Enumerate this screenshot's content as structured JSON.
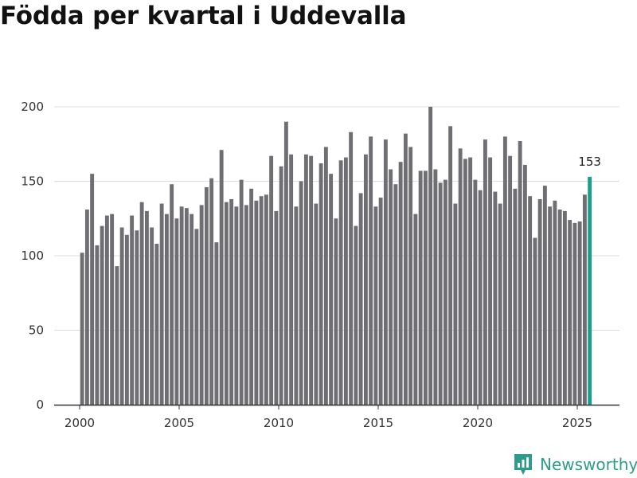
{
  "title": "Födda per kvartal i Uddevalla",
  "brand": {
    "name": "Newsworthy"
  },
  "colors": {
    "bar": "#6e6e73",
    "highlight": "#1a9e8f",
    "grid": "#dcdcdc",
    "axis": "#333333",
    "brand": "#2e9b8c"
  },
  "chart_data": {
    "type": "bar",
    "title": "Födda per kvartal i Uddevalla",
    "xlabel": "",
    "ylabel": "",
    "ylim": [
      0,
      200
    ],
    "yticks": [
      0,
      50,
      100,
      150,
      200
    ],
    "xticks": [
      "2000",
      "2005",
      "2010",
      "2015",
      "2020",
      "2025"
    ],
    "start_year": 2000,
    "periods_per_year": 4,
    "highlight_last": true,
    "last_value_label": "153",
    "values": [
      102,
      131,
      155,
      107,
      120,
      127,
      128,
      93,
      119,
      114,
      127,
      117,
      136,
      130,
      119,
      108,
      135,
      128,
      148,
      125,
      133,
      132,
      128,
      118,
      134,
      146,
      152,
      109,
      171,
      136,
      138,
      133,
      151,
      134,
      145,
      137,
      140,
      141,
      167,
      130,
      160,
      190,
      168,
      133,
      150,
      168,
      167,
      135,
      162,
      173,
      155,
      125,
      164,
      166,
      183,
      120,
      142,
      168,
      180,
      133,
      139,
      178,
      158,
      148,
      163,
      182,
      173,
      128,
      157,
      157,
      200,
      158,
      149,
      151,
      187,
      135,
      172,
      165,
      166,
      151,
      144,
      178,
      166,
      143,
      135,
      180,
      167,
      145,
      177,
      161,
      140,
      112,
      138,
      147,
      133,
      137,
      131,
      130,
      124,
      122,
      123,
      141,
      153
    ]
  }
}
